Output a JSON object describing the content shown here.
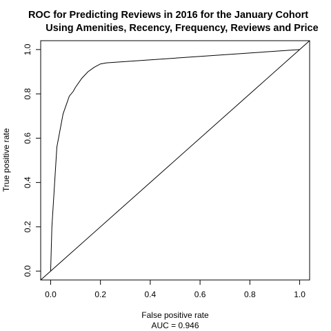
{
  "chart_data": {
    "type": "line",
    "title": "ROC for Predicting Reviews in 2016 for the January Cohort",
    "subtitle": "Using Amenities, Recency, Frequency, Reviews and Price",
    "xlabel": "False positive rate",
    "ylabel": "True positive rate",
    "note": "AUC = 0.946",
    "xlim": [
      -0.04,
      1.04
    ],
    "ylim": [
      -0.04,
      1.04
    ],
    "x_ticks": [
      0.0,
      0.2,
      0.4,
      0.6,
      0.8,
      1.0
    ],
    "x_tick_labels": [
      "0.0",
      "0.2",
      "0.4",
      "0.6",
      "0.8",
      "1.0"
    ],
    "y_ticks": [
      0.0,
      0.2,
      0.4,
      0.6,
      0.8,
      1.0
    ],
    "y_tick_labels": [
      "0.0",
      "0.2",
      "0.4",
      "0.6",
      "0.8",
      "1.0"
    ],
    "grid": false,
    "colors": {
      "line": "#000000",
      "axis": "#000000",
      "background": "#ffffff"
    },
    "series": [
      {
        "x": [
          0.0,
          0.005,
          0.025,
          0.05,
          0.075,
          0.09,
          0.1,
          0.125,
          0.15,
          0.175,
          0.2,
          0.225,
          1.0
        ],
        "y": [
          0.0,
          0.2,
          0.56,
          0.71,
          0.79,
          0.81,
          0.83,
          0.87,
          0.9,
          0.92,
          0.935,
          0.94,
          1.0
        ]
      }
    ],
    "reference_line": {
      "x": [
        -0.04,
        1.04
      ],
      "y": [
        -0.04,
        1.04
      ]
    }
  }
}
